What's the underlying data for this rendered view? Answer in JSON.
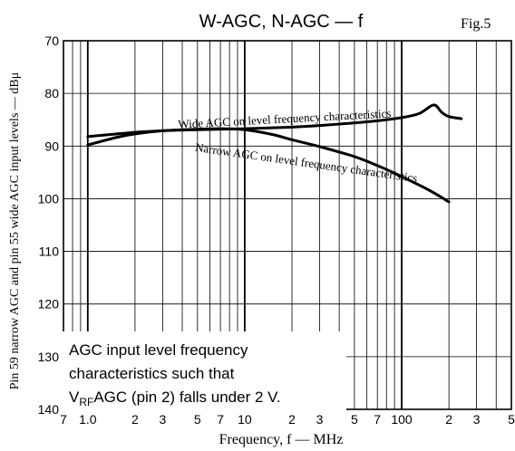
{
  "chart_data": {
    "type": "line",
    "title": "W-AGC, N-AGC — f",
    "figure_label": "Fig.5",
    "xlabel": "Frequency, f — MHz",
    "ylabel": "Pin 59 narrow AGC and pin 55 wide AGC input levels — dBμ",
    "x_scale": "log",
    "xlim": [
      0.7,
      500
    ],
    "ylim": [
      70,
      140
    ],
    "y_inverted": true,
    "grid": true,
    "x_ticks": [
      {
        "value": 0.7,
        "label": "7"
      },
      {
        "value": 1,
        "label": "1.0"
      },
      {
        "value": 2,
        "label": "2"
      },
      {
        "value": 3,
        "label": "3"
      },
      {
        "value": 5,
        "label": "5"
      },
      {
        "value": 7,
        "label": "7"
      },
      {
        "value": 10,
        "label": "10"
      },
      {
        "value": 20,
        "label": "2"
      },
      {
        "value": 30,
        "label": "3"
      },
      {
        "value": 50,
        "label": "5"
      },
      {
        "value": 70,
        "label": "7"
      },
      {
        "value": 100,
        "label": "100"
      },
      {
        "value": 200,
        "label": "2"
      },
      {
        "value": 300,
        "label": "3"
      },
      {
        "value": 500,
        "label": "5"
      }
    ],
    "y_ticks": [
      70,
      80,
      90,
      100,
      110,
      120,
      130,
      140
    ],
    "series": [
      {
        "name": "Wide AGC on level frequency characteristics",
        "x": [
          1,
          2,
          3,
          5,
          7,
          10,
          20,
          30,
          50,
          70,
          100,
          130,
          160,
          180,
          200,
          240
        ],
        "y": [
          88.2,
          87.4,
          87.1,
          86.9,
          86.8,
          86.7,
          86.4,
          86.1,
          85.6,
          85.2,
          84.6,
          83.8,
          82.2,
          83.6,
          84.4,
          84.8
        ]
      },
      {
        "name": "Narrow AGC on level frequency characteristics",
        "x": [
          1,
          1.5,
          2,
          3,
          5,
          7,
          10,
          15,
          20,
          30,
          50,
          70,
          100,
          150,
          200
        ],
        "y": [
          89.8,
          88.4,
          87.7,
          87.1,
          86.8,
          86.7,
          86.9,
          87.8,
          88.8,
          90.1,
          92.0,
          93.7,
          95.8,
          98.4,
          100.6
        ]
      }
    ],
    "annotation": {
      "line1": "AGC input level frequency",
      "line2": "characteristics such that",
      "line3_v": "V",
      "line3_sub": "RF",
      "line3_rest": "AGC (pin 2) falls under 2 V."
    }
  }
}
